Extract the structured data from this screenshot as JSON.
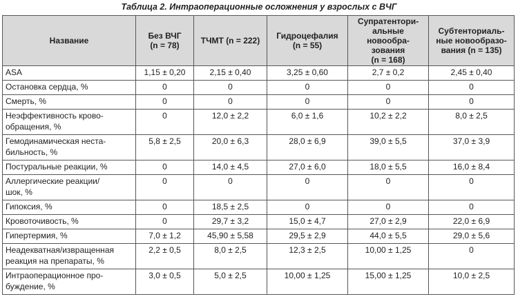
{
  "title": "Таблица 2. Интраоперационные осложнения у взрослых с ВЧГ",
  "table": {
    "header": [
      "Название",
      "Без ВЧГ\n(n = 78)",
      "ТЧМТ (n = 222)",
      "Гидроцефалия\n(n = 55)",
      "Супратентори-\nальные новообра-\nзования\n(n = 168)",
      "Субтенториаль-\nные новообразо-\nвания (n = 135)"
    ],
    "rows": [
      [
        "ASA",
        "1,15 ± 0,20",
        "2,15 ± 0,40",
        "3,25 ± 0,60",
        "2,7 ± 0,2",
        "2,45 ± 0,40"
      ],
      [
        "Остановка сердца, %",
        "0",
        "0",
        "0",
        "0",
        "0"
      ],
      [
        "Смерть, %",
        "0",
        "0",
        "0",
        "0",
        "0"
      ],
      [
        "Неэффективность крово-\nобращения, %",
        "0",
        "12,0 ± 2,2",
        "6,0 ± 1,6",
        "10,2 ± 2,2",
        "8,0 ± 2,5"
      ],
      [
        "Гемодинамическая неста-\nбильность, %",
        "5,8 ± 2,5",
        "20,0 ± 6,3",
        "28,0 ± 6,9",
        "39,0 ± 5,5",
        "37,0 ± 3,9"
      ],
      [
        "Постуральные реакции, %",
        "0",
        "14,0 ± 4,5",
        "27,0 ± 6,0",
        "18,0 ± 5,5",
        "16,0 ± 8,4"
      ],
      [
        "Аллергические реакции/\nшок, %",
        "0",
        "0",
        "0",
        "0",
        "0"
      ],
      [
        "Гипоксия, %",
        "0",
        "18,5 ± 2,5",
        "0",
        "0",
        "0"
      ],
      [
        "Кровоточивость, %",
        "0",
        "29,7 ± 3,2",
        "15,0 ± 4,7",
        "27,0 ± 2,9",
        "22,0 ± 6,9"
      ],
      [
        "Гипертермия, %",
        "7,0 ± 1,2",
        "45,90 ± 5,58",
        "29,5 ± 2,9",
        "44,0 ± 5,5",
        "29,0 ± 5,6"
      ],
      [
        "Неадекватная/извращенная\nреакция на препараты, %",
        "2,2 ± 0,5",
        "8,0 ± 2,5",
        "12,3 ± 2,5",
        "10,00 ± 1,25",
        "0"
      ],
      [
        "Интраоперационное про-\nбуждение, %",
        "3,0 ± 0,5",
        "5,0 ± 2,5",
        "10,00 ± 1,25",
        "15,00 ± 1,25",
        "10,0 ± 2,5"
      ]
    ]
  }
}
